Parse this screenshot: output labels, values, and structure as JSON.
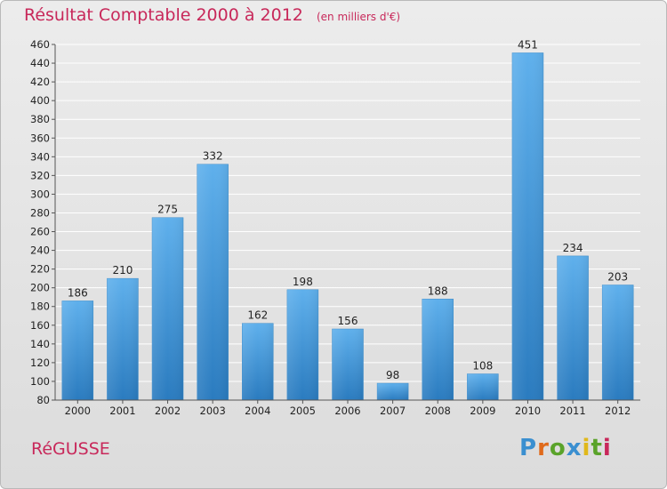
{
  "title": "Résultat Comptable 2000 à 2012",
  "subtitle": "(en milliers d'€)",
  "commune": "RéGUSSE",
  "logo": {
    "text": "Proxiti",
    "colors": [
      "#3a8fd0",
      "#e06a1b",
      "#5aa32a",
      "#3a8fd0",
      "#e0b81b",
      "#5aa32a",
      "#c8285a"
    ]
  },
  "colors": {
    "bar_top": "#5fb0ec",
    "bar_bottom": "#2a7bbf",
    "title": "#c8285a",
    "grid": "#ffffff",
    "axis": "#555555"
  },
  "chart_data": {
    "type": "bar",
    "categories": [
      "2000",
      "2001",
      "2002",
      "2003",
      "2004",
      "2005",
      "2006",
      "2007",
      "2008",
      "2009",
      "2010",
      "2011",
      "2012"
    ],
    "values": [
      186,
      210,
      275,
      332,
      162,
      198,
      156,
      98,
      188,
      108,
      451,
      234,
      203
    ],
    "ylim": [
      80,
      460
    ],
    "yticks": [
      80,
      100,
      120,
      140,
      160,
      180,
      200,
      220,
      240,
      260,
      280,
      300,
      320,
      340,
      360,
      380,
      400,
      420,
      440,
      460
    ],
    "grid": true,
    "data_labels": true
  }
}
